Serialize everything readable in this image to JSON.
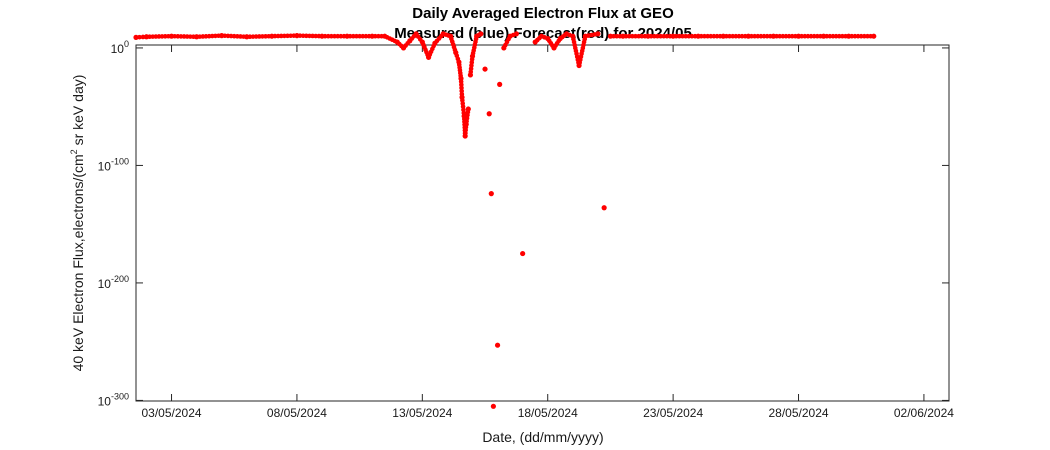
{
  "chart_data": {
    "type": "scatter",
    "title": "Daily Averaged Electron Flux at GEO",
    "subtitle": "Measured (blue) Forecast(red) for 2024/05",
    "xlabel": "Date, (dd/mm/yyyy)",
    "ylabel_parts": [
      "40 keV Electron Flux,electrons/(cm",
      "2",
      " sr keV day)"
    ],
    "y_scale": "log",
    "xlim": [
      "2024-05-01T14:00",
      "2024-06-03T00:00"
    ],
    "ylim_log10": [
      -300.5,
      2.5
    ],
    "x_ticks": [
      {
        "date": "2024-05-03",
        "label": "03/05/2024"
      },
      {
        "date": "2024-05-08",
        "label": "08/05/2024"
      },
      {
        "date": "2024-05-13",
        "label": "13/05/2024"
      },
      {
        "date": "2024-05-18",
        "label": "18/05/2024"
      },
      {
        "date": "2024-05-23",
        "label": "23/05/2024"
      },
      {
        "date": "2024-05-28",
        "label": "28/05/2024"
      },
      {
        "date": "2024-06-02",
        "label": "02/06/2024"
      }
    ],
    "y_ticks": [
      {
        "log10": 0,
        "base": "10",
        "exp": "0"
      },
      {
        "log10": -100,
        "base": "10",
        "exp": "-100"
      },
      {
        "log10": -200,
        "base": "10",
        "exp": "-200"
      },
      {
        "log10": -300,
        "base": "10",
        "exp": "-300"
      }
    ],
    "grid": false,
    "series": [
      {
        "color": "#ff0000",
        "marker": "dot",
        "points_log10": [
          [
            "2024-05-01T14:00",
            9
          ],
          [
            "2024-05-02T00:00",
            9.5
          ],
          [
            "2024-05-03T00:00",
            10
          ],
          [
            "2024-05-04T00:00",
            9.5
          ],
          [
            "2024-05-05T00:00",
            10.5
          ],
          [
            "2024-05-06T00:00",
            9.5
          ],
          [
            "2024-05-07T00:00",
            10
          ],
          [
            "2024-05-08T00:00",
            10.5
          ],
          [
            "2024-05-09T00:00",
            10
          ],
          [
            "2024-05-10T00:00",
            10
          ],
          [
            "2024-05-11T00:00",
            10
          ],
          [
            "2024-05-11T12:00",
            10
          ],
          [
            "2024-05-12T00:00",
            5
          ],
          [
            "2024-05-12T06:00",
            0
          ],
          [
            "2024-05-12T12:00",
            6
          ],
          [
            "2024-05-12T18:00",
            12
          ],
          [
            "2024-05-13T00:00",
            5
          ],
          [
            "2024-05-13T06:00",
            -8
          ],
          [
            "2024-05-13T12:00",
            4
          ],
          [
            "2024-05-13T20:00",
            12
          ],
          [
            "2024-05-14T03:00",
            10
          ],
          [
            "2024-05-14T08:00",
            -4
          ],
          [
            "2024-05-14T11:00",
            -12
          ],
          [
            "2024-05-14T13:00",
            -26
          ],
          [
            "2024-05-14T14:00",
            -42
          ],
          [
            "2024-05-14T16:00",
            -58
          ],
          [
            "2024-05-14T17:00",
            -75
          ],
          [
            "2024-05-14T18:00",
            -65
          ],
          [
            "2024-05-14T20:00",
            -52
          ],
          [
            "2024-05-14T22:00",
            -23
          ],
          [
            "2024-05-15T00:00",
            -7
          ],
          [
            "2024-05-15T04:00",
            10
          ],
          [
            "2024-05-15T08:00",
            12
          ],
          [
            "2024-05-15T12:00",
            -18
          ],
          [
            "2024-05-15T16:00",
            -56
          ],
          [
            "2024-05-15T18:00",
            -124
          ],
          [
            "2024-05-15T20:00",
            -305
          ],
          [
            "2024-05-16T00:00",
            -253
          ],
          [
            "2024-05-16T02:00",
            -31
          ],
          [
            "2024-05-16T06:00",
            0
          ],
          [
            "2024-05-16T12:00",
            10
          ],
          [
            "2024-05-16T18:00",
            12
          ],
          [
            "2024-05-17T00:00",
            -175
          ],
          [
            "2024-05-17T12:00",
            5
          ],
          [
            "2024-05-17T18:00",
            10
          ],
          [
            "2024-05-18T00:00",
            8
          ],
          [
            "2024-05-18T06:00",
            0
          ],
          [
            "2024-05-18T12:00",
            8
          ],
          [
            "2024-05-18T18:00",
            12
          ],
          [
            "2024-05-19T00:00",
            10
          ],
          [
            "2024-05-19T06:00",
            -15
          ],
          [
            "2024-05-19T12:00",
            10
          ],
          [
            "2024-05-20T00:00",
            12
          ],
          [
            "2024-05-20T06:00",
            -136
          ],
          [
            "2024-05-20T12:00",
            10
          ],
          [
            "2024-05-21T00:00",
            10
          ],
          [
            "2024-05-22T00:00",
            10
          ],
          [
            "2024-05-23T00:00",
            10
          ],
          [
            "2024-05-24T00:00",
            10
          ],
          [
            "2024-05-25T00:00",
            10
          ],
          [
            "2024-05-26T00:00",
            10
          ],
          [
            "2024-05-27T00:00",
            10
          ],
          [
            "2024-05-28T00:00",
            10
          ],
          [
            "2024-05-29T00:00",
            10
          ],
          [
            "2024-05-30T00:00",
            10
          ],
          [
            "2024-05-31T00:00",
            10
          ]
        ]
      }
    ]
  }
}
